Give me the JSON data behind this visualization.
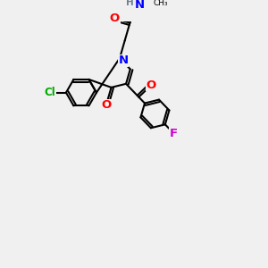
{
  "bg_color": "#f0f0f0",
  "bond_color": "#000000",
  "bond_width": 1.5,
  "atom_colors": {
    "N": "#0000ff",
    "O": "#ff0000",
    "Cl": "#00aa00",
    "F": "#cc00cc",
    "H": "#708090",
    "C": "#000000"
  },
  "font_size": 8.5,
  "dbl_off": 0.09
}
